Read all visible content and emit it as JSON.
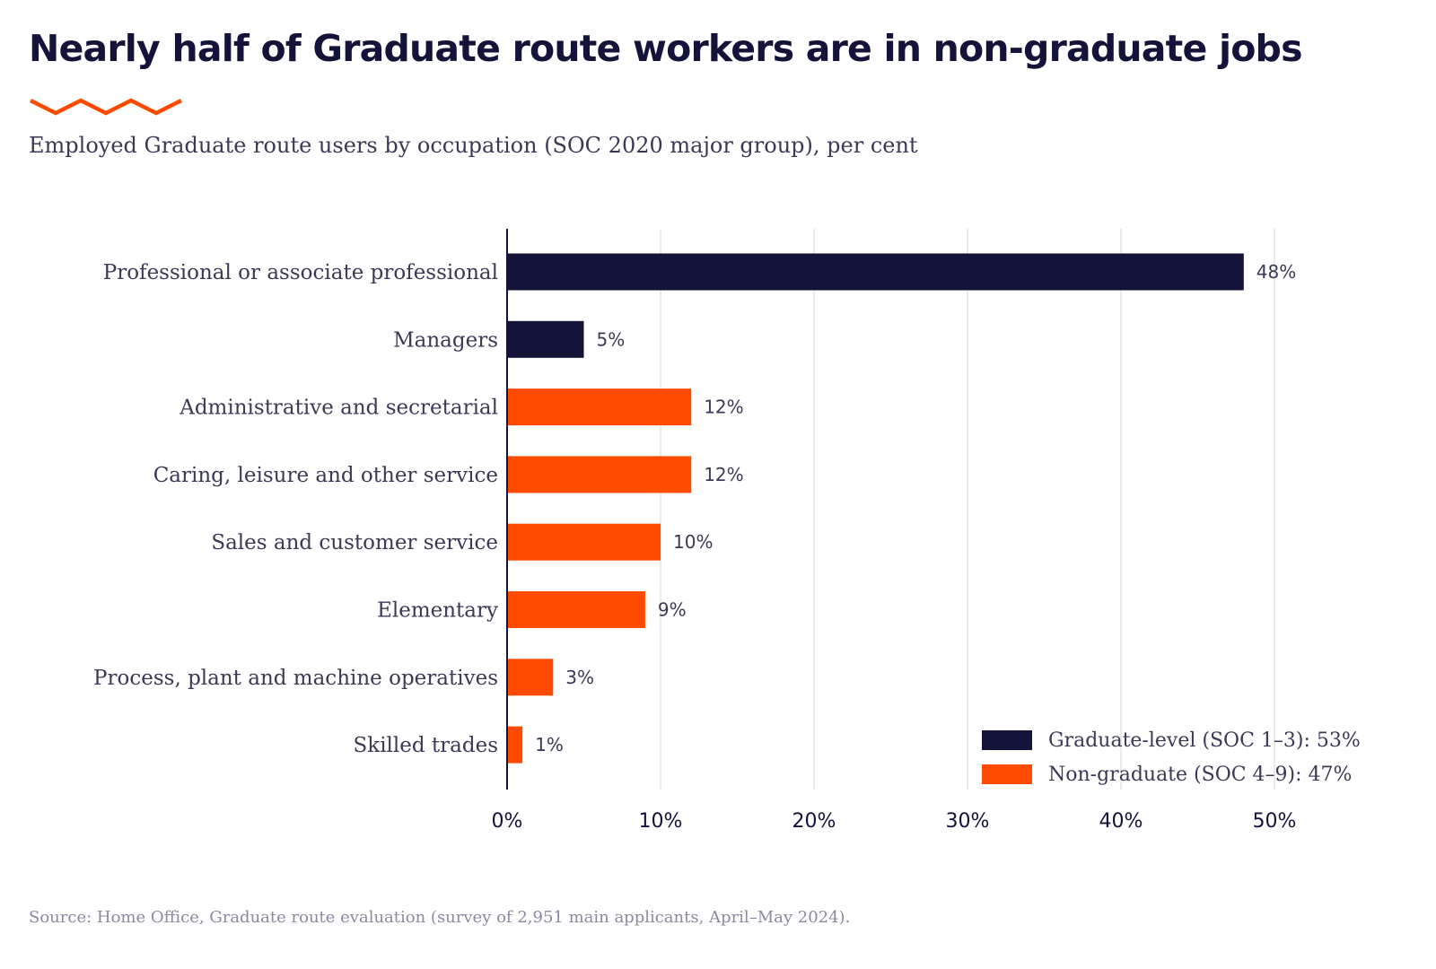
{
  "title": "Nearly half of Graduate route workers are in non-graduate jobs",
  "subtitle": "Employed Graduate route users by occupation (SOC 2020 major group), per cent",
  "source": "Source: Home Office, Graduate route evaluation (survey of 2,951 main applicants, April–May 2024).",
  "colors": {
    "graduate": "#14143a",
    "non_graduate": "#ff4b00",
    "accent": "#ff4b00",
    "grid": "#e4e4ea",
    "axis": "#14143a",
    "text": "#3a3a55"
  },
  "legend": [
    {
      "label": "Graduate-level (SOC 1–3): 53%",
      "color": "#14143a"
    },
    {
      "label": "Non-graduate (SOC 4–9): 47%",
      "color": "#ff4b00"
    }
  ],
  "chart_data": {
    "type": "bar",
    "orientation": "horizontal",
    "title": "Nearly half of Graduate route workers are in non-graduate jobs",
    "subtitle": "Employed Graduate route users by occupation (SOC 2020 major group), per cent",
    "categories": [
      "Professional or associate professional",
      "Managers",
      "Administrative and secretarial",
      "Caring, leisure and other service",
      "Sales and customer service",
      "Elementary",
      "Process, plant and machine operatives",
      "Skilled trades"
    ],
    "values": [
      48,
      5,
      12,
      12,
      10,
      9,
      3,
      1
    ],
    "value_labels": [
      "48%",
      "5%",
      "12%",
      "12%",
      "10%",
      "9%",
      "3%",
      "1%"
    ],
    "groups": [
      "graduate",
      "graduate",
      "non_graduate",
      "non_graduate",
      "non_graduate",
      "non_graduate",
      "non_graduate",
      "non_graduate"
    ],
    "xlim": [
      0,
      50
    ],
    "xticks": [
      0,
      10,
      20,
      30,
      40,
      50
    ],
    "xtick_labels": [
      "0%",
      "10%",
      "20%",
      "30%",
      "40%",
      "50%"
    ],
    "xlabel": "",
    "ylabel": "",
    "grid": "vertical",
    "legend_position": "bottom-right"
  }
}
